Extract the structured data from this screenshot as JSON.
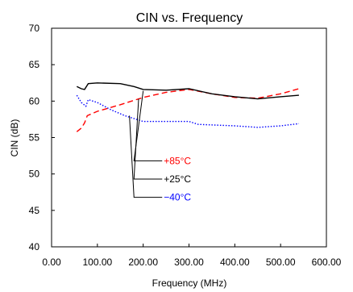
{
  "chart_data": {
    "type": "line",
    "title": "CIN vs. Frequency",
    "xlabel": "Frequency (MHz)",
    "ylabel": "CIN (dB)",
    "xlim": [
      0,
      600
    ],
    "ylim": [
      40,
      70
    ],
    "xticks": [
      0,
      100,
      200,
      300,
      400,
      500,
      600
    ],
    "yticks": [
      40,
      45,
      50,
      55,
      60,
      65,
      70
    ],
    "xtick_labels": [
      "0.00",
      "100.00",
      "200.00",
      "300.00",
      "400.00",
      "500.00",
      "600.00"
    ],
    "ytick_labels": [
      "40",
      "45",
      "50",
      "55",
      "60",
      "65",
      "70"
    ],
    "grid": false,
    "series": [
      {
        "name": "+85°C",
        "color": "#ff0000",
        "dash": "dashed",
        "points": [
          [
            55,
            55.8
          ],
          [
            65,
            56.3
          ],
          [
            72,
            57.0
          ],
          [
            78,
            58.0
          ],
          [
            100,
            58.6
          ],
          [
            150,
            59.5
          ],
          [
            200,
            60.5
          ],
          [
            250,
            61.2
          ],
          [
            300,
            61.6
          ],
          [
            350,
            61.0
          ],
          [
            400,
            60.5
          ],
          [
            450,
            60.4
          ],
          [
            500,
            61.0
          ],
          [
            540,
            61.7
          ]
        ]
      },
      {
        "name": "+25°C",
        "color": "#000000",
        "dash": "solid",
        "points": [
          [
            55,
            62.0
          ],
          [
            65,
            61.7
          ],
          [
            72,
            61.6
          ],
          [
            80,
            62.4
          ],
          [
            100,
            62.5
          ],
          [
            150,
            62.4
          ],
          [
            180,
            62.0
          ],
          [
            200,
            61.6
          ],
          [
            250,
            61.5
          ],
          [
            300,
            61.7
          ],
          [
            350,
            61.0
          ],
          [
            400,
            60.6
          ],
          [
            450,
            60.3
          ],
          [
            500,
            60.6
          ],
          [
            540,
            60.8
          ]
        ]
      },
      {
        "name": "−40°C",
        "color": "#0000ff",
        "dash": "dotted",
        "points": [
          [
            55,
            60.8
          ],
          [
            65,
            59.8
          ],
          [
            75,
            59.3
          ],
          [
            80,
            60.2
          ],
          [
            100,
            59.8
          ],
          [
            130,
            58.8
          ],
          [
            160,
            58.0
          ],
          [
            200,
            57.2
          ],
          [
            250,
            57.2
          ],
          [
            300,
            57.2
          ],
          [
            320,
            56.8
          ],
          [
            400,
            56.6
          ],
          [
            450,
            56.4
          ],
          [
            500,
            56.6
          ],
          [
            540,
            56.9
          ]
        ]
      }
    ],
    "annotations": [
      {
        "text": "+85°C",
        "color": "#ff0000",
        "x_label": 245,
        "y_label": 51.8,
        "x_point": 200,
        "y_point": 61.4
      },
      {
        "text": "+25°C",
        "color": "#000000",
        "x_label": 245,
        "y_label": 49.3,
        "x_point": 190,
        "y_point": 60.3
      },
      {
        "text": "−40°C",
        "color": "#0000ff",
        "x_label": 245,
        "y_label": 46.8,
        "x_point": 170,
        "y_point": 58.0
      }
    ]
  }
}
